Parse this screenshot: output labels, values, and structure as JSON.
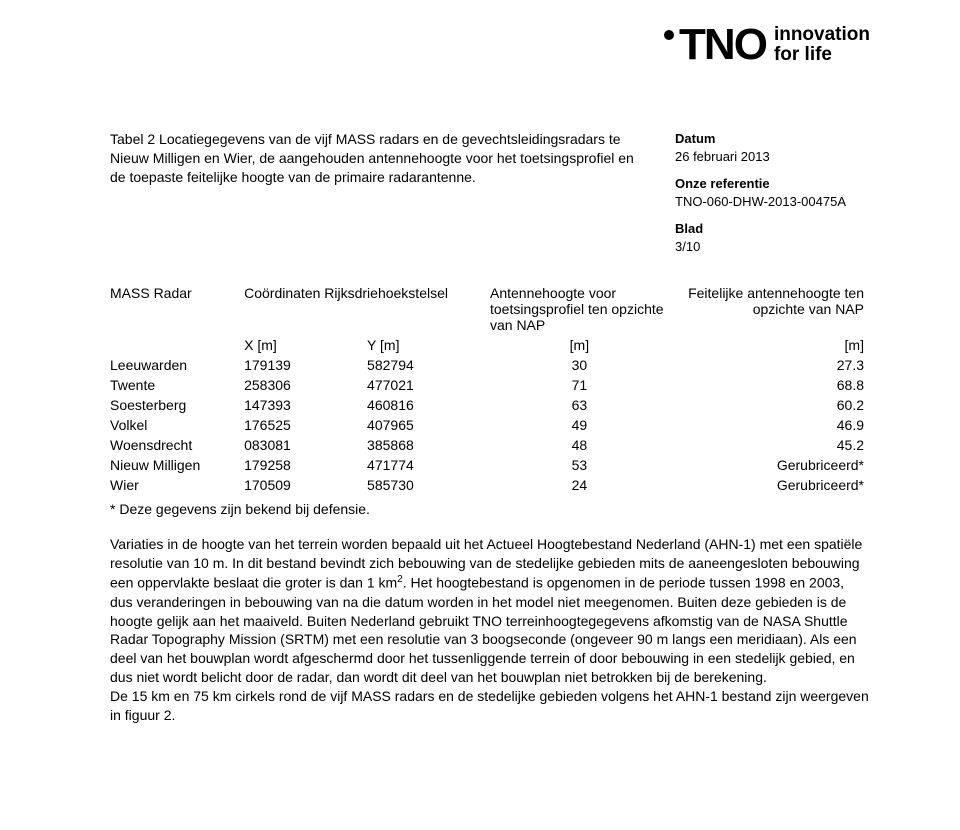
{
  "logo": {
    "text": "TNO",
    "tagline1": "innovation",
    "tagline2": "for life"
  },
  "meta": {
    "datum_label": "Datum",
    "datum_value": "26 februari 2013",
    "ref_label": "Onze referentie",
    "ref_value": "TNO-060-DHW-2013-00475A",
    "blad_label": "Blad",
    "blad_value": "3/10"
  },
  "caption": "Tabel 2 Locatiegegevens van de vijf MASS radars en de gevechtsleidingsradars te Nieuw Milligen en Wier, de aangehouden antennehoogte voor het toetsingsprofiel en de toepaste feitelijke hoogte van de primaire radarantenne.",
  "table": {
    "h_radar": "MASS Radar",
    "h_coord": "Coördinaten Rijksdriehoekstelsel",
    "h_ant1": "Antennehoogte voor toetsingsprofiel ten opzichte van NAP",
    "h_ant2": "Feitelijke antennehoogte ten opzichte van NAP",
    "u_x": "X [m]",
    "u_y": "Y [m]",
    "u_m1": "[m]",
    "u_m2": "[m]",
    "rows": [
      {
        "name": "Leeuwarden",
        "x": "179139",
        "y": "582794",
        "a1": "30",
        "a2": "27.3"
      },
      {
        "name": "Twente",
        "x": "258306",
        "y": "477021",
        "a1": "71",
        "a2": "68.8"
      },
      {
        "name": "Soesterberg",
        "x": "147393",
        "y": "460816",
        "a1": "63",
        "a2": "60.2"
      },
      {
        "name": "Volkel",
        "x": "176525",
        "y": "407965",
        "a1": "49",
        "a2": "46.9"
      },
      {
        "name": "Woensdrecht",
        "x": "083081",
        "y": "385868",
        "a1": "48",
        "a2": "45.2"
      },
      {
        "name": "Nieuw Milligen",
        "x": "179258",
        "y": "471774",
        "a1": "53",
        "a2": "Gerubriceerd*"
      },
      {
        "name": "Wier",
        "x": "170509",
        "y": "585730",
        "a1": "24",
        "a2": "Gerubriceerd*"
      }
    ]
  },
  "footnote": "* Deze gegevens zijn bekend bij defensie.",
  "para": {
    "p1a": "Variaties in de hoogte van het terrein worden bepaald uit het Actueel Hoogtebestand Nederland (AHN-1) met een spatiële resolutie van 10 m. In dit bestand bevindt zich bebouwing van de stedelijke gebieden mits de aaneengesloten bebouwing een oppervlakte beslaat die groter is dan 1 km",
    "p1b": ". Het hoogtebestand is opgenomen in de periode tussen 1998 en 2003, dus veranderingen in bebouwing van na die datum worden in het model niet meegenomen. Buiten deze gebieden is de hoogte gelijk aan het maaiveld. Buiten Nederland gebruikt TNO terreinhoogtegegevens afkomstig van de NASA Shuttle Radar Topography Mission (SRTM) met een resolutie van 3 boogseconde (ongeveer 90 m langs een meridiaan). Als een deel van het bouwplan wordt afgeschermd door het tussenliggende terrein of door bebouwing in een stedelijk gebied, en dus niet wordt belicht door de radar, dan wordt dit deel van het bouwplan niet betrokken bij de berekening.",
    "sup": "2",
    "p2": "De 15 km en 75 km cirkels rond de vijf MASS radars en de stedelijke gebieden volgens het AHN-1 bestand zijn weergeven in figuur 2."
  }
}
